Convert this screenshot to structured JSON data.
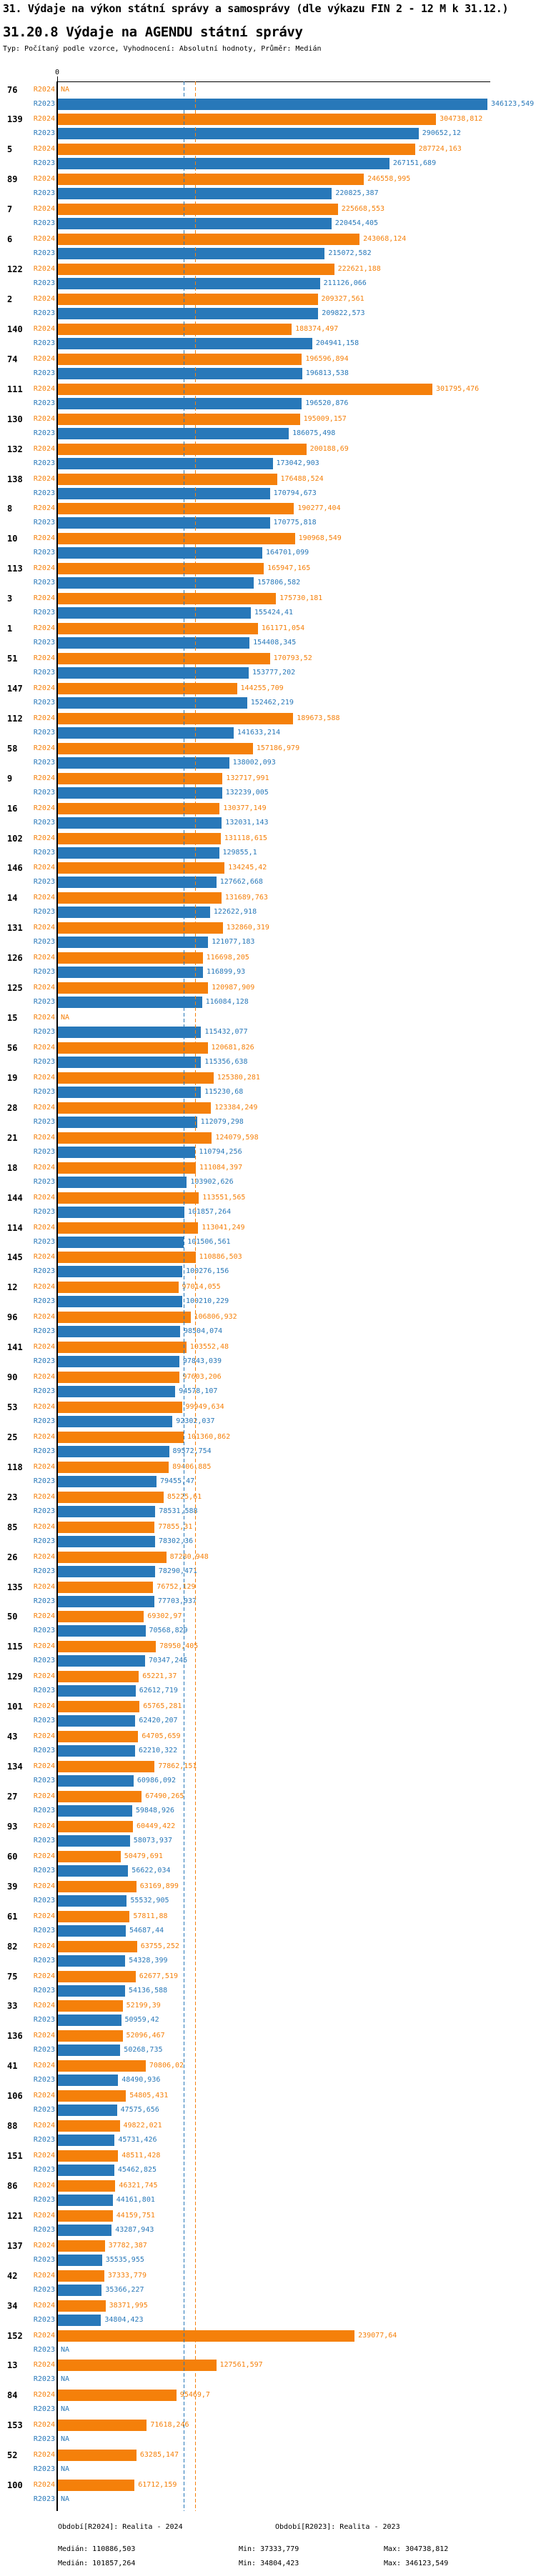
{
  "title": "31. Výdaje na výkon státní správy a samosprávy (dle výkazu FIN 2 - 12 M k 31.12.)",
  "subtitle": "31.20.8 Výdaje na AGENDU státní správy",
  "meta": "Typ: Počítaný podle vzorce, Vyhodnocení: Absolutní hodnoty, Průměr: Medián",
  "colors": {
    "r2024": "#f5800a",
    "r2023": "#2878b9",
    "axis": "#000000",
    "background": "#ffffff"
  },
  "chart_data": {
    "type": "bar",
    "orientation": "horizontal",
    "title": "31.20.8 Výdaje na AGENDU státní správy",
    "value_axis": {
      "min": 0,
      "tick_labels": [
        "0"
      ],
      "max_value_shown": 346123.549
    },
    "series_names": [
      "R2024",
      "R2023"
    ],
    "na_text": "NA",
    "median_lines": [
      {
        "series": "R2024",
        "value": 110886.503
      },
      {
        "series": "R2023",
        "value": 101857.264
      }
    ],
    "rows": [
      {
        "category": "76",
        "R2024": null,
        "R2023": "346123,549"
      },
      {
        "category": "139",
        "R2024": "304738,812",
        "R2023": "290652,12"
      },
      {
        "category": "5",
        "R2024": "287724,163",
        "R2023": "267151,689"
      },
      {
        "category": "89",
        "R2024": "246558,995",
        "R2023": "220825,387"
      },
      {
        "category": "7",
        "R2024": "225668,553",
        "R2023": "220454,405"
      },
      {
        "category": "6",
        "R2024": "243068,124",
        "R2023": "215072,582"
      },
      {
        "category": "122",
        "R2024": "222621,188",
        "R2023": "211126,066"
      },
      {
        "category": "2",
        "R2024": "209327,561",
        "R2023": "209822,573"
      },
      {
        "category": "140",
        "R2024": "188374,497",
        "R2023": "204941,158"
      },
      {
        "category": "74",
        "R2024": "196596,894",
        "R2023": "196813,538"
      },
      {
        "category": "111",
        "R2024": "301795,476",
        "R2023": "196520,876"
      },
      {
        "category": "130",
        "R2024": "195009,157",
        "R2023": "186075,498"
      },
      {
        "category": "132",
        "R2024": "200188,69",
        "R2023": "173042,903"
      },
      {
        "category": "138",
        "R2024": "176488,524",
        "R2023": "170794,673"
      },
      {
        "category": "8",
        "R2024": "190277,404",
        "R2023": "170775,818"
      },
      {
        "category": "10",
        "R2024": "190968,549",
        "R2023": "164701,099"
      },
      {
        "category": "113",
        "R2024": "165947,165",
        "R2023": "157806,582"
      },
      {
        "category": "3",
        "R2024": "175730,181",
        "R2023": "155424,41"
      },
      {
        "category": "1",
        "R2024": "161171,054",
        "R2023": "154408,345"
      },
      {
        "category": "51",
        "R2024": "170793,52",
        "R2023": "153777,202"
      },
      {
        "category": "147",
        "R2024": "144255,709",
        "R2023": "152462,219"
      },
      {
        "category": "112",
        "R2024": "189673,588",
        "R2023": "141633,214"
      },
      {
        "category": "58",
        "R2024": "157186,979",
        "R2023": "138002,093"
      },
      {
        "category": "9",
        "R2024": "132717,991",
        "R2023": "132239,005"
      },
      {
        "category": "16",
        "R2024": "130377,149",
        "R2023": "132031,143"
      },
      {
        "category": "102",
        "R2024": "131118,615",
        "R2023": "129855,1"
      },
      {
        "category": "146",
        "R2024": "134245,42",
        "R2023": "127662,668"
      },
      {
        "category": "14",
        "R2024": "131689,763",
        "R2023": "122622,918"
      },
      {
        "category": "131",
        "R2024": "132860,319",
        "R2023": "121077,183"
      },
      {
        "category": "126",
        "R2024": "116698,205",
        "R2023": "116899,93"
      },
      {
        "category": "125",
        "R2024": "120987,909",
        "R2023": "116084,128"
      },
      {
        "category": "15",
        "R2024": null,
        "R2023": "115432,077"
      },
      {
        "category": "56",
        "R2024": "120681,826",
        "R2023": "115356,638"
      },
      {
        "category": "19",
        "R2024": "125380,281",
        "R2023": "115230,68"
      },
      {
        "category": "28",
        "R2024": "123384,249",
        "R2023": "112079,298"
      },
      {
        "category": "21",
        "R2024": "124079,598",
        "R2023": "110794,256"
      },
      {
        "category": "18",
        "R2024": "111084,397",
        "R2023": "103902,626"
      },
      {
        "category": "144",
        "R2024": "113551,565",
        "R2023": "101857,264"
      },
      {
        "category": "114",
        "R2024": "113041,249",
        "R2023": "101506,561"
      },
      {
        "category": "145",
        "R2024": "110886,503",
        "R2023": "100276,156"
      },
      {
        "category": "12",
        "R2024": "97014,055",
        "R2023": "100210,229"
      },
      {
        "category": "96",
        "R2024": "106806,932",
        "R2023": "98504,074"
      },
      {
        "category": "141",
        "R2024": "103552,48",
        "R2023": "97843,039"
      },
      {
        "category": "90",
        "R2024": "97603,206",
        "R2023": "94578,107"
      },
      {
        "category": "53",
        "R2024": "99949,634",
        "R2023": "92302,037"
      },
      {
        "category": "25",
        "R2024": "101360,862",
        "R2023": "89572,754"
      },
      {
        "category": "118",
        "R2024": "89406,885",
        "R2023": "79455,47"
      },
      {
        "category": "23",
        "R2024": "85225,61",
        "R2023": "78531,588"
      },
      {
        "category": "85",
        "R2024": "77855,31",
        "R2023": "78302,36"
      },
      {
        "category": "26",
        "R2024": "87280,948",
        "R2023": "78290,471"
      },
      {
        "category": "135",
        "R2024": "76752,129",
        "R2023": "77703,937"
      },
      {
        "category": "50",
        "R2024": "69302,97",
        "R2023": "70568,829"
      },
      {
        "category": "115",
        "R2024": "78950,405",
        "R2023": "70347,245"
      },
      {
        "category": "129",
        "R2024": "65221,37",
        "R2023": "62612,719"
      },
      {
        "category": "101",
        "R2024": "65765,281",
        "R2023": "62420,207"
      },
      {
        "category": "43",
        "R2024": "64705,659",
        "R2023": "62210,322"
      },
      {
        "category": "134",
        "R2024": "77862,151",
        "R2023": "60986,092"
      },
      {
        "category": "27",
        "R2024": "67490,265",
        "R2023": "59848,926"
      },
      {
        "category": "93",
        "R2024": "60449,422",
        "R2023": "58073,937"
      },
      {
        "category": "60",
        "R2024": "50479,691",
        "R2023": "56622,034"
      },
      {
        "category": "39",
        "R2024": "63169,899",
        "R2023": "55532,905"
      },
      {
        "category": "61",
        "R2024": "57811,88",
        "R2023": "54687,44"
      },
      {
        "category": "82",
        "R2024": "63755,252",
        "R2023": "54328,399"
      },
      {
        "category": "75",
        "R2024": "62677,519",
        "R2023": "54136,588"
      },
      {
        "category": "33",
        "R2024": "52199,39",
        "R2023": "50959,42"
      },
      {
        "category": "136",
        "R2024": "52096,467",
        "R2023": "50268,735"
      },
      {
        "category": "41",
        "R2024": "70806,02",
        "R2023": "48490,936"
      },
      {
        "category": "106",
        "R2024": "54805,431",
        "R2023": "47575,656"
      },
      {
        "category": "88",
        "R2024": "49822,021",
        "R2023": "45731,426"
      },
      {
        "category": "151",
        "R2024": "48511,428",
        "R2023": "45462,825"
      },
      {
        "category": "86",
        "R2024": "46321,745",
        "R2023": "44161,801"
      },
      {
        "category": "121",
        "R2024": "44159,751",
        "R2023": "43287,943"
      },
      {
        "category": "137",
        "R2024": "37782,387",
        "R2023": "35535,955"
      },
      {
        "category": "42",
        "R2024": "37333,779",
        "R2023": "35366,227"
      },
      {
        "category": "34",
        "R2024": "38371,995",
        "R2023": "34804,423"
      },
      {
        "category": "152",
        "R2024": "239077,64",
        "R2023": null
      },
      {
        "category": "13",
        "R2024": "127561,597",
        "R2023": null
      },
      {
        "category": "84",
        "R2024": "95469,7",
        "R2023": null
      },
      {
        "category": "153",
        "R2024": "71618,246",
        "R2023": null
      },
      {
        "category": "52",
        "R2024": "63285,147",
        "R2023": null
      },
      {
        "category": "100",
        "R2024": "61712,159",
        "R2023": null
      }
    ]
  },
  "axis": {
    "zero_label": "0"
  },
  "footer": {
    "r2024_header": "Období[R2024]: Realita - 2024",
    "r2023_header": "Období[R2023]: Realita - 2023",
    "r2024_median": "Medián: 110886,503",
    "r2024_min": "Min: 37333,779",
    "r2024_max": "Max: 304738,812",
    "r2023_median": "Medián: 101857,264",
    "r2023_min": "Min: 34804,423",
    "r2023_max": "Max: 346123,549"
  }
}
